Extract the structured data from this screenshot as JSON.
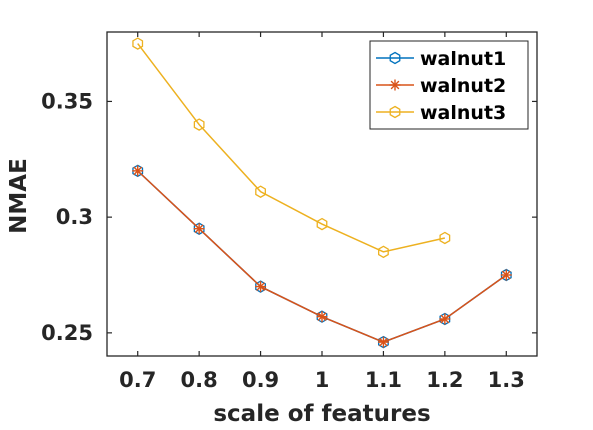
{
  "chart_data": {
    "type": "line",
    "xlabel": "scale of features",
    "ylabel": "NMAE",
    "xlim": [
      0.65,
      1.35
    ],
    "ylim": [
      0.24,
      0.38
    ],
    "xticks": [
      "0.7",
      "0.8",
      "0.9",
      "1",
      "1.1",
      "1.2",
      "1.3"
    ],
    "yticks": [
      "0.25",
      "0.3",
      "0.35"
    ],
    "legend_position": "top-right",
    "grid": false,
    "series": [
      {
        "name": "walnut1",
        "color": "#0072BD",
        "marker": "hexagon",
        "x": [
          0.7,
          0.8,
          0.9,
          1.0,
          1.1,
          1.2,
          1.3
        ],
        "y": [
          0.32,
          0.295,
          0.27,
          0.257,
          0.246,
          0.256,
          0.275
        ]
      },
      {
        "name": "walnut2",
        "color": "#D95319",
        "marker": "asterisk",
        "x": [
          0.7,
          0.8,
          0.9,
          1.0,
          1.1,
          1.2,
          1.3
        ],
        "y": [
          0.32,
          0.295,
          0.27,
          0.257,
          0.246,
          0.256,
          0.275
        ]
      },
      {
        "name": "walnut3",
        "color": "#EDB120",
        "marker": "hexagon",
        "x": [
          0.7,
          0.8,
          0.9,
          1.0,
          1.1,
          1.2
        ],
        "y": [
          0.375,
          0.34,
          0.311,
          0.297,
          0.285,
          0.291
        ]
      }
    ]
  }
}
